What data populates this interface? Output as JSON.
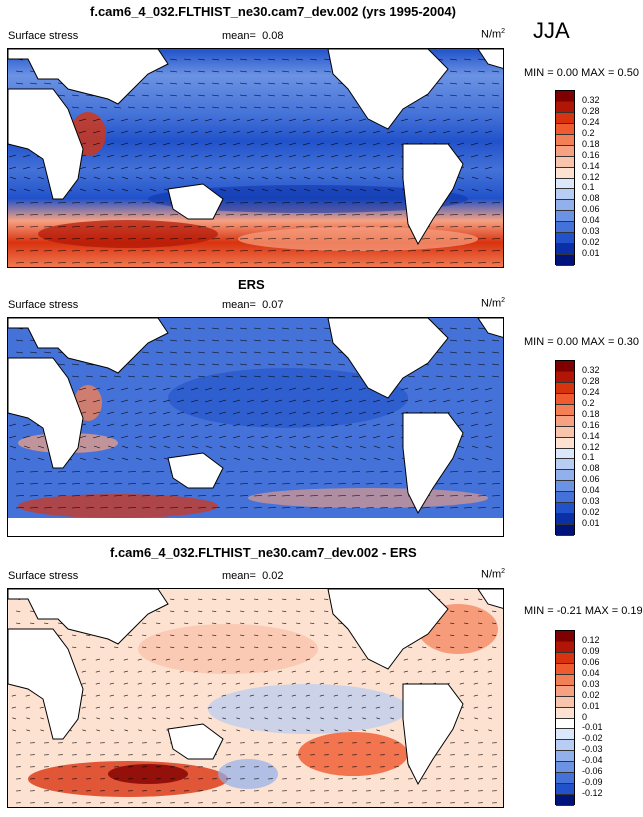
{
  "season": "JJA",
  "panels": [
    {
      "title": "f.cam6_4_032.FLTHIST_ne30.cam7_dev.002 (yrs 1995-2004)",
      "variable": "Surface stress",
      "mean_label": "mean=",
      "mean_value": "0.08",
      "units_base": "N/m",
      "units_exp": "2",
      "minmax": "MIN =  0.00 MAX =  0.50",
      "colorbar_ticks": [
        "0.32",
        "0.28",
        "0.24",
        "0.2",
        "0.18",
        "0.16",
        "0.14",
        "0.12",
        "0.1",
        "0.08",
        "0.06",
        "0.04",
        "0.03",
        "0.02",
        "0.01"
      ],
      "colors": [
        "#7f0000",
        "#b01505",
        "#d8330f",
        "#ef5a2f",
        "#f37f57",
        "#f6a182",
        "#f9c4ac",
        "#fde1d1",
        "#dbe8fb",
        "#b7cdf4",
        "#92b0ec",
        "#6b92e3",
        "#4572d8",
        "#2152ca",
        "#0a2fa6",
        "#00137a"
      ]
    },
    {
      "title": "ERS",
      "variable": "Surface stress",
      "mean_label": "mean=",
      "mean_value": "0.07",
      "units_base": "N/m",
      "units_exp": "2",
      "minmax": "MIN =  0.00 MAX =  0.30",
      "colorbar_ticks": [
        "0.32",
        "0.28",
        "0.24",
        "0.2",
        "0.18",
        "0.16",
        "0.14",
        "0.12",
        "0.1",
        "0.08",
        "0.06",
        "0.04",
        "0.03",
        "0.02",
        "0.01"
      ],
      "colors": [
        "#7f0000",
        "#b01505",
        "#d8330f",
        "#ef5a2f",
        "#f37f57",
        "#f6a182",
        "#f9c4ac",
        "#fde1d1",
        "#dbe8fb",
        "#b7cdf4",
        "#92b0ec",
        "#6b92e3",
        "#4572d8",
        "#2152ca",
        "#0a2fa6",
        "#00137a"
      ]
    },
    {
      "title": "f.cam6_4_032.FLTHIST_ne30.cam7_dev.002 - ERS",
      "variable": "Surface stress",
      "mean_label": "mean=",
      "mean_value": "0.02",
      "units_base": "N/m",
      "units_exp": "2",
      "minmax": "MIN = -0.21 MAX =  0.19",
      "colorbar_ticks": [
        "0.12",
        "0.09",
        "0.06",
        "0.04",
        "0.03",
        "0.02",
        "0.01",
        "0",
        "-0.01",
        "-0.02",
        "-0.03",
        "-0.04",
        "-0.06",
        "-0.09",
        "-0.12"
      ],
      "colors": [
        "#7f0000",
        "#b01505",
        "#d8330f",
        "#ef5a2f",
        "#f37f57",
        "#f6a182",
        "#f9c4ac",
        "#fde1d1",
        "#ffffff",
        "#dbe8fb",
        "#b7cdf4",
        "#92b0ec",
        "#6b92e3",
        "#4572d8",
        "#2152ca",
        "#00137a"
      ]
    }
  ]
}
